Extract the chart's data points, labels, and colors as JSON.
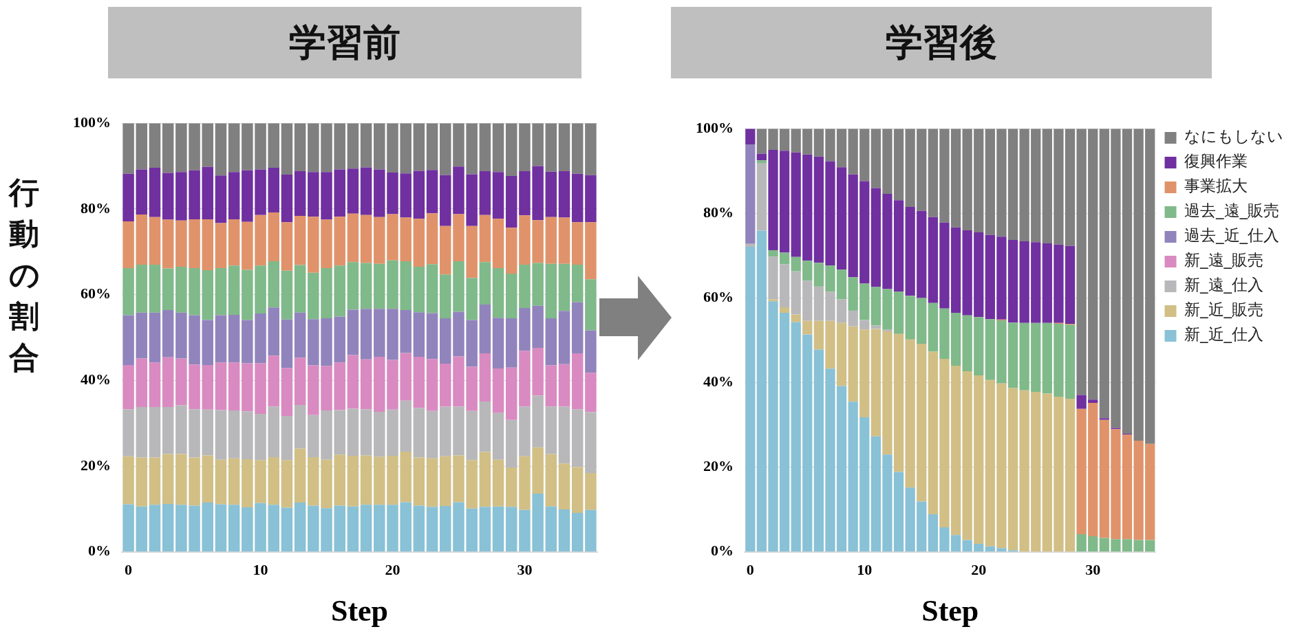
{
  "chart_data": [
    {
      "type": "bar",
      "title": "学習前",
      "xlabel": "Step",
      "ylabel": "行動の割合",
      "stacked": true,
      "grid": "y",
      "legend": false,
      "x": [
        0,
        1,
        2,
        3,
        4,
        5,
        6,
        7,
        8,
        9,
        10,
        11,
        12,
        13,
        14,
        15,
        16,
        17,
        18,
        19,
        20,
        21,
        22,
        23,
        24,
        25,
        26,
        27,
        28,
        29,
        30,
        31,
        32,
        33,
        34,
        35
      ],
      "xlim": [
        -0.5,
        35.5
      ],
      "xticks": [
        0,
        10,
        20,
        30
      ],
      "ylim": [
        0,
        100
      ],
      "yticks": [
        {
          "value": 0,
          "label": "0%"
        },
        {
          "value": 20,
          "label": "20%"
        },
        {
          "value": 40,
          "label": "40%"
        },
        {
          "value": 60,
          "label": "60%"
        },
        {
          "value": 80,
          "label": "80%"
        },
        {
          "value": 100,
          "label": "100%"
        }
      ],
      "series": [
        {
          "color": "#89c1d6",
          "values": [
            11.1,
            10.6,
            11.0,
            11.2,
            11.0,
            10.8,
            11.5,
            11.1,
            11.0,
            10.4,
            11.4,
            11.0,
            10.3,
            11.5,
            10.8,
            10.2,
            10.8,
            10.6,
            11.0,
            11.0,
            11.0,
            11.6,
            10.8,
            10.5,
            10.7,
            11.6,
            10.1,
            10.5,
            10.6,
            10.5,
            9.8,
            13.6,
            10.6,
            9.9,
            9.1,
            9.8
          ]
        },
        {
          "color": "#d1bf86",
          "values": [
            11.2,
            11.4,
            11.0,
            11.6,
            11.8,
            11.2,
            11.0,
            10.4,
            10.8,
            11.2,
            10.0,
            11.1,
            11.1,
            12.6,
            11.3,
            11.3,
            11.9,
            11.8,
            11.5,
            11.2,
            11.4,
            11.8,
            11.2,
            11.3,
            11.6,
            10.9,
            11.3,
            12.8,
            10.9,
            9.2,
            12.5,
            10.8,
            12.2,
            10.7,
            10.7,
            8.6
          ]
        },
        {
          "color": "#b8b8ba",
          "values": [
            11.0,
            11.8,
            11.8,
            11.0,
            11.4,
            11.3,
            10.7,
            11.6,
            11.2,
            11.2,
            10.8,
            11.8,
            10.3,
            10.2,
            9.8,
            11.5,
            10.4,
            11.0,
            10.8,
            10.5,
            10.8,
            11.9,
            11.6,
            11.1,
            11.6,
            11.4,
            11.5,
            11.8,
            10.9,
            11.1,
            11.6,
            12.1,
            11.1,
            13.3,
            13.5,
            14.2
          ]
        },
        {
          "color": "#d98ac1",
          "values": [
            10.3,
            11.3,
            10.4,
            11.6,
            10.9,
            10.4,
            10.4,
            11.1,
            11.2,
            11.2,
            11.8,
            11.9,
            11.2,
            11.0,
            11.6,
            10.4,
            11.1,
            12.5,
            11.6,
            12.8,
            11.6,
            11.1,
            11.9,
            12.1,
            10.0,
            11.7,
            10.3,
            11.2,
            10.4,
            12.2,
            13.0,
            11.1,
            9.6,
            9.9,
            13.0,
            9.2
          ]
        },
        {
          "color": "#9184bc",
          "values": [
            11.6,
            10.7,
            11.6,
            11.0,
            10.7,
            11.5,
            10.5,
            11.0,
            11.1,
            10.1,
            11.6,
            11.2,
            11.3,
            10.5,
            10.8,
            11.1,
            10.7,
            10.6,
            11.8,
            11.2,
            11.9,
            10.0,
            10.4,
            10.7,
            10.6,
            10.4,
            10.9,
            11.4,
            11.8,
            11.5,
            10.0,
            9.8,
            11.0,
            12.4,
            11.9,
            9.9
          ]
        },
        {
          "color": "#80b98a",
          "values": [
            11.0,
            11.2,
            11.2,
            9.7,
            10.7,
            11.0,
            11.6,
            11.0,
            11.5,
            11.7,
            11.2,
            10.8,
            11.4,
            11.1,
            10.8,
            11.7,
            11.9,
            11.1,
            10.7,
            10.5,
            11.3,
            11.4,
            10.6,
            11.4,
            10.2,
            11.8,
            9.8,
            9.9,
            11.6,
            10.4,
            10.1,
            10.0,
            12.7,
            11.0,
            8.8,
            11.9
          ]
        },
        {
          "color": "#e0936a",
          "values": [
            10.9,
            11.7,
            11.1,
            11.4,
            10.8,
            11.4,
            11.9,
            10.5,
            10.8,
            11.2,
            11.8,
            11.4,
            11.3,
            11.5,
            13.1,
            11.3,
            11.4,
            11.3,
            11.2,
            10.9,
            10.8,
            10.2,
            11.2,
            11.9,
            11.3,
            11.0,
            12.1,
            11.0,
            11.5,
            10.7,
            11.5,
            10.0,
            10.9,
            10.8,
            9.9,
            13.3
          ]
        },
        {
          "color": "#7030a0",
          "values": [
            11.1,
            10.5,
            11.5,
            10.9,
            11.3,
            11.4,
            12.2,
            11.1,
            11.0,
            12.0,
            10.6,
            10.4,
            11.1,
            10.4,
            10.4,
            11.1,
            11.0,
            10.5,
            11.1,
            11.1,
            9.7,
            10.3,
            11.2,
            10.1,
            11.9,
            11.1,
            12.1,
            10.2,
            10.9,
            12.1,
            10.3,
            12.6,
            10.6,
            10.8,
            11.3,
            11.0
          ]
        },
        {
          "color": "#808080",
          "values": [
            11.8,
            10.8,
            10.4,
            11.6,
            11.4,
            11.0,
            10.2,
            12.2,
            11.4,
            11.0,
            10.8,
            10.4,
            12.0,
            11.2,
            11.4,
            11.4,
            10.8,
            10.6,
            10.3,
            10.8,
            11.5,
            11.7,
            11.1,
            10.9,
            12.1,
            10.1,
            11.9,
            11.2,
            11.4,
            12.3,
            11.2,
            10.0,
            11.3,
            11.2,
            11.8,
            12.1
          ]
        }
      ]
    },
    {
      "type": "bar",
      "title": "学習後",
      "xlabel": "Step",
      "stacked": true,
      "grid": "y",
      "legend": "top right",
      "x": [
        0,
        1,
        2,
        3,
        4,
        5,
        6,
        7,
        8,
        9,
        10,
        11,
        12,
        13,
        14,
        15,
        16,
        17,
        18,
        19,
        20,
        21,
        22,
        23,
        24,
        25,
        26,
        27,
        28,
        29,
        30,
        31,
        32,
        33,
        34,
        35
      ],
      "xlim": [
        -0.5,
        35.5
      ],
      "xticks": [
        0,
        10,
        20,
        30
      ],
      "ylim": [
        0,
        100
      ],
      "yticks": [
        {
          "value": 0,
          "label": "0%"
        },
        {
          "value": 20,
          "label": "20%"
        },
        {
          "value": 40,
          "label": "40%"
        },
        {
          "value": 60,
          "label": "60%"
        },
        {
          "value": 80,
          "label": "80%"
        },
        {
          "value": 100,
          "label": "100%"
        }
      ],
      "series": [
        {
          "name": "新_近_仕入",
          "color": "#89c1d6",
          "values": [
            72.1,
            75.9,
            59.2,
            56.5,
            54.3,
            51.4,
            47.8,
            43.3,
            39.2,
            35.5,
            31.8,
            27.3,
            23.0,
            18.9,
            15.2,
            11.9,
            8.9,
            5.8,
            4.0,
            2.8,
            1.9,
            1.3,
            0.9,
            0.4,
            0,
            0,
            0,
            0,
            0,
            0,
            0,
            0,
            0,
            0,
            0,
            0
          ]
        },
        {
          "name": "新_近_販売",
          "color": "#d1bf86",
          "values": [
            0,
            0,
            0.5,
            1.3,
            1.8,
            3.2,
            6.8,
            11.3,
            14.9,
            17.8,
            20.7,
            25.4,
            29.1,
            32.6,
            35.0,
            37.3,
            38.4,
            39.8,
            40.0,
            39.9,
            39.8,
            39.3,
            38.9,
            38.3,
            38.2,
            37.8,
            37.4,
            36.7,
            36.2,
            0,
            0,
            0,
            0,
            0,
            0,
            0
          ]
        },
        {
          "name": "新_遠_仕入",
          "color": "#b8b8ba",
          "values": [
            0.7,
            15.9,
            10.1,
            10.2,
            10.2,
            9.5,
            8.1,
            6.9,
            5.6,
            3.7,
            2.3,
            0.8,
            0.4,
            0,
            0,
            0,
            0,
            0,
            0,
            0,
            0,
            0,
            0,
            0,
            0,
            0,
            0,
            0,
            0,
            0,
            0,
            0,
            0,
            0,
            0,
            0
          ]
        },
        {
          "name": "新_遠_販売",
          "color": "#d98ac1",
          "values": [
            0,
            0,
            0,
            0,
            0,
            0,
            0,
            0,
            0,
            0,
            0,
            0,
            0,
            0,
            0,
            0,
            0,
            0,
            0,
            0,
            0,
            0,
            0,
            0,
            0,
            0,
            0,
            0,
            0,
            0,
            0,
            0,
            0,
            0,
            0,
            0
          ]
        },
        {
          "name": "過去_近_仕入",
          "color": "#9184bc",
          "values": [
            23.5,
            0,
            0,
            0,
            0,
            0,
            0,
            0,
            0,
            0,
            0,
            0,
            0,
            0,
            0,
            0,
            0,
            0,
            0,
            0,
            0,
            0,
            0,
            0,
            0,
            0,
            0,
            0,
            0,
            0,
            0,
            0,
            0,
            0,
            0,
            0
          ]
        },
        {
          "name": "過去_遠_販売",
          "color": "#80b98a",
          "values": [
            0,
            0.7,
            1.5,
            2.7,
            3.4,
            4.7,
            5.6,
            6.2,
            7.0,
            7.9,
            8.6,
            9.1,
            9.6,
            10.0,
            10.3,
            10.8,
            11.5,
            11.9,
            12.5,
            13.2,
            13.8,
            14.4,
            14.9,
            15.5,
            15.9,
            16.3,
            16.7,
            17.2,
            17.5,
            4.2,
            3.7,
            3.3,
            3.0,
            3.0,
            2.8,
            2.8
          ]
        },
        {
          "name": "事業拡大",
          "color": "#e0936a",
          "values": [
            0,
            0,
            0,
            0,
            0,
            0,
            0,
            0,
            0,
            0,
            0,
            0,
            0,
            0,
            0,
            0,
            0,
            0,
            0,
            0,
            0,
            0,
            0.2,
            0,
            0,
            0,
            0,
            0.2,
            0.2,
            29.6,
            31.5,
            27.9,
            26.0,
            24.7,
            23.5,
            22.7
          ]
        },
        {
          "name": "復興作業",
          "color": "#7030a0",
          "values": [
            3.7,
            1.6,
            23.7,
            24.1,
            24.7,
            25.1,
            25.1,
            24.6,
            24.2,
            24.3,
            24.2,
            23.4,
            22.5,
            21.6,
            21.0,
            20.6,
            20.3,
            20.3,
            20.2,
            20.1,
            20.0,
            19.9,
            19.6,
            19.5,
            19.3,
            19.1,
            18.8,
            18.5,
            18.4,
            3.3,
            0.8,
            0.4,
            0.3,
            0.2,
            0,
            0
          ]
        },
        {
          "name": "なにもしない",
          "color": "#808080",
          "values": [
            0,
            5.9,
            5.0,
            5.2,
            5.6,
            6.1,
            6.6,
            7.7,
            9.1,
            10.8,
            12.4,
            14.0,
            15.4,
            16.9,
            18.5,
            19.4,
            20.9,
            22.2,
            23.3,
            24.0,
            24.5,
            25.1,
            25.5,
            26.3,
            26.6,
            26.8,
            27.1,
            27.4,
            27.7,
            62.9,
            64.0,
            68.4,
            70.7,
            72.1,
            73.7,
            74.5
          ]
        }
      ]
    }
  ]
}
